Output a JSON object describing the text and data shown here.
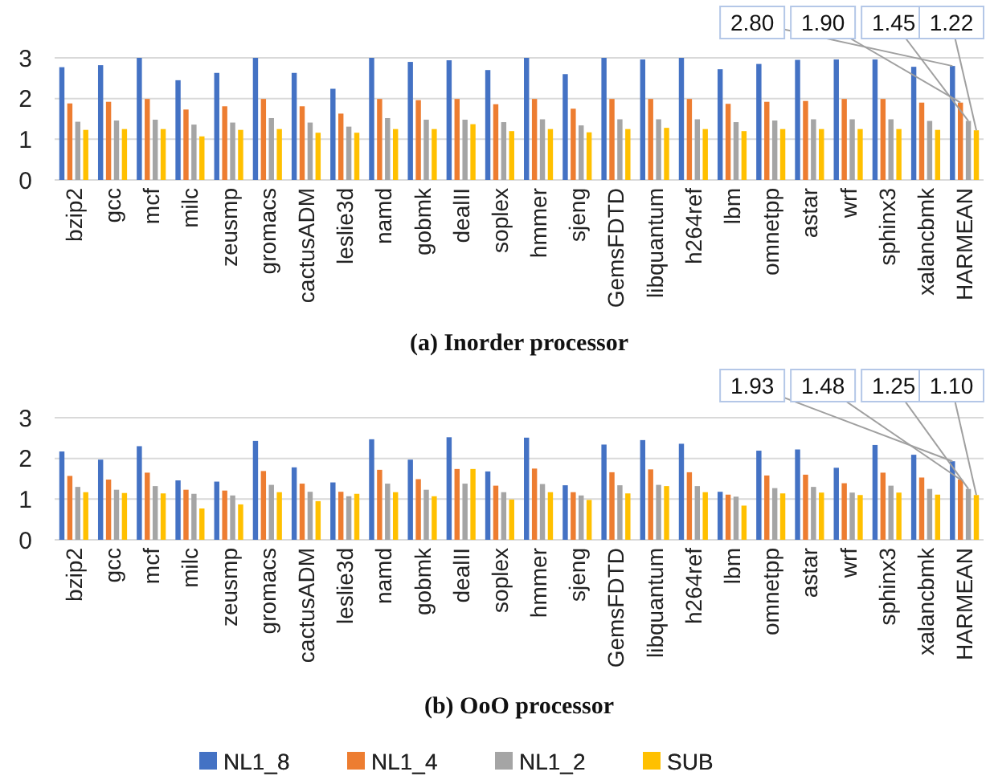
{
  "chart_data": [
    {
      "type": "bar",
      "title": "(a) Inorder processor",
      "categories": [
        "bzip2",
        "gcc",
        "mcf",
        "milc",
        "zeusmp",
        "gromacs",
        "cactusADM",
        "leslie3d",
        "namd",
        "gobmk",
        "dealII",
        "soplex",
        "hmmer",
        "sjeng",
        "GemsFDTD",
        "libquantum",
        "h264ref",
        "lbm",
        "omnetpp",
        "astar",
        "wrf",
        "sphinx3",
        "xalancbmk",
        "HARMEAN"
      ],
      "ylim": [
        0,
        3
      ],
      "yticks": [
        0,
        1,
        2,
        3
      ],
      "grid": "y",
      "legend": "bottom",
      "series": [
        {
          "name": "NL1_8",
          "color": "#4472c4",
          "values": [
            2.77,
            2.82,
            3.0,
            2.45,
            2.63,
            3.0,
            2.63,
            2.24,
            3.0,
            2.9,
            2.94,
            2.7,
            3.0,
            2.6,
            3.0,
            2.96,
            3.0,
            2.72,
            2.85,
            2.95,
            2.96,
            2.96,
            2.78,
            2.8
          ],
          "value_labels": [
            null,
            null,
            null,
            null,
            null,
            null,
            null,
            null,
            null,
            null,
            null,
            null,
            null,
            null,
            null,
            null,
            null,
            null,
            null,
            null,
            null,
            null,
            null,
            "2.80"
          ]
        },
        {
          "name": "NL1_4",
          "color": "#ed7d31",
          "values": [
            1.88,
            1.92,
            1.99,
            1.73,
            1.81,
            1.99,
            1.81,
            1.63,
            1.99,
            1.96,
            1.99,
            1.86,
            1.99,
            1.75,
            1.99,
            1.99,
            1.99,
            1.87,
            1.92,
            1.94,
            1.99,
            1.99,
            1.9,
            1.9
          ],
          "value_labels": [
            null,
            null,
            null,
            null,
            null,
            null,
            null,
            null,
            null,
            null,
            null,
            null,
            null,
            null,
            null,
            null,
            null,
            null,
            null,
            null,
            null,
            null,
            null,
            "1.90"
          ]
        },
        {
          "name": "NL1_2",
          "color": "#a5a5a5",
          "values": [
            1.43,
            1.46,
            1.48,
            1.36,
            1.41,
            1.52,
            1.41,
            1.31,
            1.52,
            1.48,
            1.48,
            1.42,
            1.49,
            1.34,
            1.49,
            1.49,
            1.49,
            1.42,
            1.46,
            1.49,
            1.49,
            1.49,
            1.45,
            1.45
          ],
          "value_labels": [
            null,
            null,
            null,
            null,
            null,
            null,
            null,
            null,
            null,
            null,
            null,
            null,
            null,
            null,
            null,
            null,
            null,
            null,
            null,
            null,
            null,
            null,
            null,
            "1.45"
          ]
        },
        {
          "name": "SUB",
          "color": "#ffc000",
          "values": [
            1.23,
            1.25,
            1.25,
            1.07,
            1.23,
            1.25,
            1.16,
            1.16,
            1.25,
            1.25,
            1.37,
            1.2,
            1.25,
            1.17,
            1.25,
            1.28,
            1.25,
            1.2,
            1.25,
            1.25,
            1.25,
            1.25,
            1.23,
            1.22
          ],
          "value_labels": [
            null,
            null,
            null,
            null,
            null,
            null,
            null,
            null,
            null,
            null,
            null,
            null,
            null,
            null,
            null,
            null,
            null,
            null,
            null,
            null,
            null,
            null,
            null,
            "1.22"
          ]
        }
      ]
    },
    {
      "type": "bar",
      "title": "(b) OoO processor",
      "categories": [
        "bzip2",
        "gcc",
        "mcf",
        "milc",
        "zeusmp",
        "gromacs",
        "cactusADM",
        "leslie3d",
        "namd",
        "gobmk",
        "dealII",
        "soplex",
        "hmmer",
        "sjeng",
        "GemsFDTD",
        "libquantum",
        "h264ref",
        "lbm",
        "omnetpp",
        "astar",
        "wrf",
        "sphinx3",
        "xalancbmk",
        "HARMEAN"
      ],
      "ylim": [
        0,
        3
      ],
      "yticks": [
        0,
        1,
        2,
        3
      ],
      "grid": "y",
      "legend": "bottom",
      "series": [
        {
          "name": "NL1_8",
          "color": "#4472c4",
          "values": [
            2.17,
            1.97,
            2.3,
            1.46,
            1.43,
            2.43,
            1.78,
            1.41,
            2.47,
            1.97,
            2.52,
            1.68,
            2.51,
            1.34,
            2.34,
            2.45,
            2.36,
            1.18,
            2.19,
            2.22,
            1.77,
            2.33,
            2.09,
            1.93
          ],
          "value_labels": [
            null,
            null,
            null,
            null,
            null,
            null,
            null,
            null,
            null,
            null,
            null,
            null,
            null,
            null,
            null,
            null,
            null,
            null,
            null,
            null,
            null,
            null,
            null,
            "1.93"
          ]
        },
        {
          "name": "NL1_4",
          "color": "#ed7d31",
          "values": [
            1.57,
            1.48,
            1.65,
            1.23,
            1.21,
            1.69,
            1.38,
            1.18,
            1.72,
            1.49,
            1.74,
            1.33,
            1.75,
            1.17,
            1.66,
            1.73,
            1.66,
            1.11,
            1.58,
            1.6,
            1.39,
            1.65,
            1.53,
            1.48
          ],
          "value_labels": [
            null,
            null,
            null,
            null,
            null,
            null,
            null,
            null,
            null,
            null,
            null,
            null,
            null,
            null,
            null,
            null,
            null,
            null,
            null,
            null,
            null,
            null,
            null,
            "1.48"
          ]
        },
        {
          "name": "NL1_2",
          "color": "#a5a5a5",
          "values": [
            1.3,
            1.23,
            1.32,
            1.13,
            1.09,
            1.35,
            1.18,
            1.07,
            1.38,
            1.23,
            1.38,
            1.17,
            1.37,
            1.09,
            1.34,
            1.35,
            1.32,
            1.06,
            1.27,
            1.3,
            1.16,
            1.33,
            1.25,
            1.25
          ],
          "value_labels": [
            null,
            null,
            null,
            null,
            null,
            null,
            null,
            null,
            null,
            null,
            null,
            null,
            null,
            null,
            null,
            null,
            null,
            null,
            null,
            null,
            null,
            null,
            null,
            "1.25"
          ]
        },
        {
          "name": "SUB",
          "color": "#ffc000",
          "values": [
            1.17,
            1.15,
            1.14,
            0.77,
            0.87,
            1.17,
            0.95,
            1.13,
            1.17,
            1.07,
            1.74,
            0.99,
            1.17,
            0.98,
            1.14,
            1.32,
            1.17,
            0.84,
            1.14,
            1.16,
            1.1,
            1.16,
            1.11,
            1.1
          ],
          "value_labels": [
            null,
            null,
            null,
            null,
            null,
            null,
            null,
            null,
            null,
            null,
            null,
            null,
            null,
            null,
            null,
            null,
            null,
            null,
            null,
            null,
            null,
            null,
            null,
            "1.10"
          ]
        }
      ]
    }
  ]
}
